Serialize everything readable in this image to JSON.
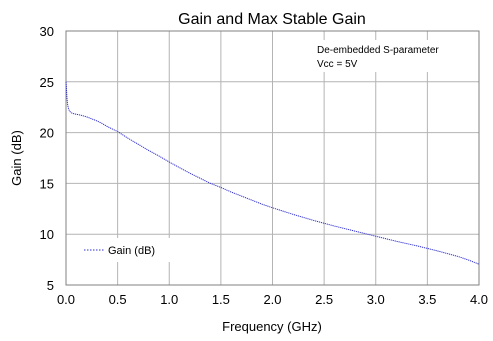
{
  "chart_data": {
    "type": "line",
    "title": "Gain and Max Stable Gain",
    "xlabel": "Frequency (GHz)",
    "ylabel": "Gain (dB)",
    "xlim": [
      0,
      4.0
    ],
    "ylim": [
      5,
      30
    ],
    "x_ticks": [
      "0.0",
      "0.5",
      "1.0",
      "1.5",
      "2.0",
      "2.5",
      "3.0",
      "3.5",
      "4.0"
    ],
    "y_ticks": [
      "5",
      "10",
      "15",
      "20",
      "25",
      "30"
    ],
    "grid": true,
    "annotations": [
      "De-embedded S-parameter",
      "Vcc = 5V"
    ],
    "legend_position": "lower-left",
    "series": [
      {
        "name": "Gain (dB)",
        "color": "#3030d0",
        "style": "dotted",
        "x": [
          0.0,
          0.003,
          0.008,
          0.015,
          0.025,
          0.04,
          0.06,
          0.08,
          0.1,
          0.15,
          0.2,
          0.25,
          0.3,
          0.35,
          0.4,
          0.45,
          0.5,
          0.6,
          0.7,
          0.8,
          0.9,
          1.0,
          1.1,
          1.2,
          1.3,
          1.4,
          1.5,
          1.6,
          1.7,
          1.8,
          1.9,
          2.0,
          2.2,
          2.4,
          2.6,
          2.8,
          3.0,
          3.2,
          3.4,
          3.6,
          3.8,
          3.9,
          4.0
        ],
        "y": [
          25.0,
          24.6,
          23.6,
          22.8,
          22.3,
          22.05,
          21.9,
          21.85,
          21.8,
          21.7,
          21.55,
          21.35,
          21.15,
          20.9,
          20.6,
          20.35,
          20.1,
          19.45,
          18.85,
          18.25,
          17.7,
          17.1,
          16.55,
          16.0,
          15.5,
          15.0,
          14.6,
          14.15,
          13.75,
          13.35,
          12.95,
          12.6,
          11.95,
          11.35,
          10.8,
          10.3,
          9.8,
          9.3,
          8.85,
          8.35,
          7.8,
          7.45,
          7.05
        ]
      }
    ]
  }
}
